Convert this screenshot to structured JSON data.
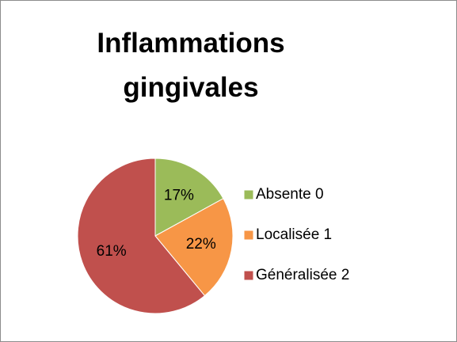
{
  "chart_data": {
    "type": "pie",
    "title": "Inflammations gingivales",
    "categories": [
      "Absente 0",
      "Localisée 1",
      "Généralisée 2"
    ],
    "values": [
      17,
      22,
      61
    ],
    "value_labels": [
      "17%",
      "22%",
      "61%"
    ],
    "colors": [
      "#9bbb59",
      "#f79646",
      "#c0504d"
    ],
    "legend": "right"
  }
}
